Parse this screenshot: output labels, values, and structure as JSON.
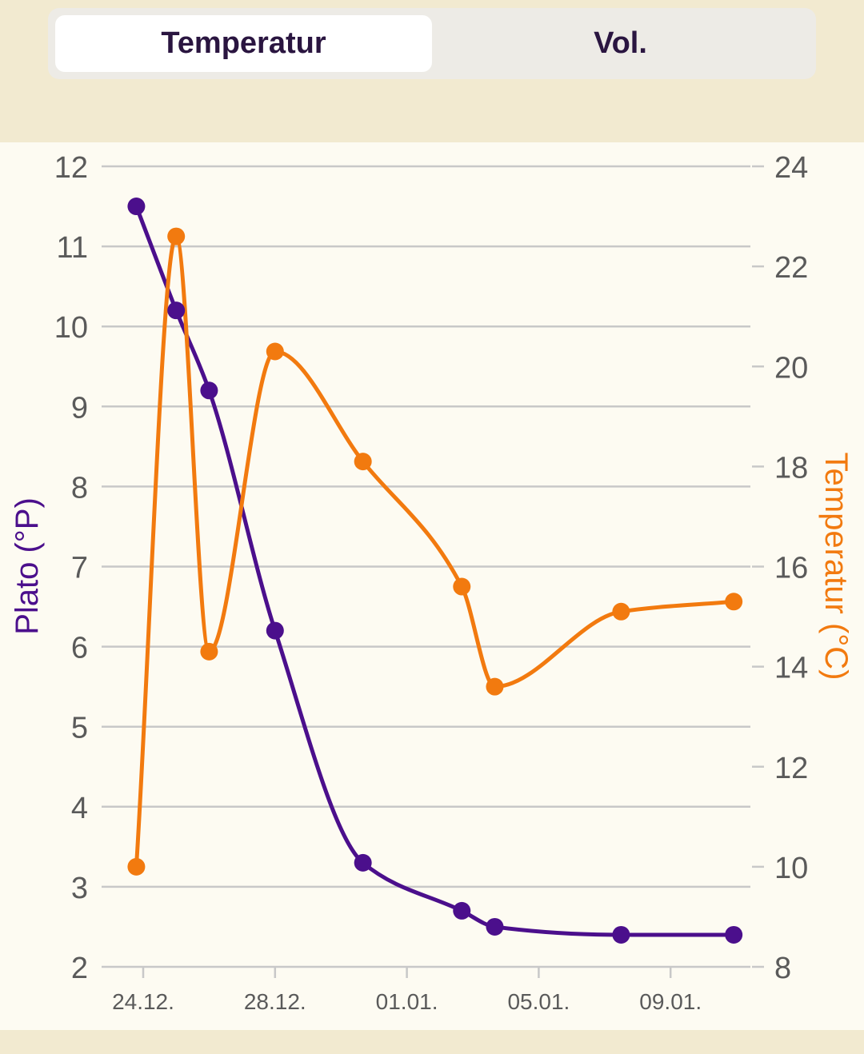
{
  "tabs": [
    {
      "label": "Temperatur",
      "active": true
    },
    {
      "label": "Vol.",
      "active": false
    }
  ],
  "colors": {
    "plato": "#4B0F8C",
    "temperature": "#F27A0F",
    "grid": "#C8C8C8",
    "tick_text": "#5A5A5A",
    "background": "#F2EAD0",
    "panel": "#FDFBF2"
  },
  "chart_data": {
    "type": "line",
    "x_tick_labels": [
      "24.12.",
      "28.12.",
      "01.01.",
      "05.01.",
      "09.01."
    ],
    "x_tick_dates": [
      "2020-12-24",
      "2020-12-28",
      "2021-01-01",
      "2021-01-05",
      "2021-01-09"
    ],
    "y_left": {
      "label": "Plato (°P)",
      "range": [
        2,
        12
      ],
      "ticks": [
        2,
        3,
        4,
        5,
        6,
        7,
        8,
        9,
        10,
        11,
        12
      ]
    },
    "y_right": {
      "label": "Temperatur (°C)",
      "range": [
        8,
        24
      ],
      "ticks": [
        8,
        10,
        12,
        14,
        16,
        18,
        20,
        22,
        24
      ]
    },
    "grid": true,
    "series": [
      {
        "name": "Plato (°P)",
        "axis": "left",
        "points": [
          {
            "x": "2020-12-23T19:00",
            "y": 11.5
          },
          {
            "x": "2020-12-25T00:00",
            "y": 10.2
          },
          {
            "x": "2020-12-26T00:00",
            "y": 9.2
          },
          {
            "x": "2020-12-28T00:00",
            "y": 6.2
          },
          {
            "x": "2020-12-30T16:00",
            "y": 3.3
          },
          {
            "x": "2021-01-02T16:00",
            "y": 2.7
          },
          {
            "x": "2021-01-03T16:00",
            "y": 2.5
          },
          {
            "x": "2021-01-07T12:00",
            "y": 2.4
          },
          {
            "x": "2021-01-10T22:00",
            "y": 2.4
          }
        ]
      },
      {
        "name": "Temperatur (°C)",
        "axis": "right",
        "points": [
          {
            "x": "2020-12-23T19:00",
            "y": 10.0
          },
          {
            "x": "2020-12-25T00:00",
            "y": 22.6
          },
          {
            "x": "2020-12-26T00:00",
            "y": 14.3
          },
          {
            "x": "2020-12-28T00:00",
            "y": 20.3
          },
          {
            "x": "2020-12-30T16:00",
            "y": 18.1
          },
          {
            "x": "2021-01-02T16:00",
            "y": 15.6
          },
          {
            "x": "2021-01-03T16:00",
            "y": 13.6
          },
          {
            "x": "2021-01-07T12:00",
            "y": 15.1
          },
          {
            "x": "2021-01-10T22:00",
            "y": 15.3
          }
        ]
      }
    ]
  }
}
